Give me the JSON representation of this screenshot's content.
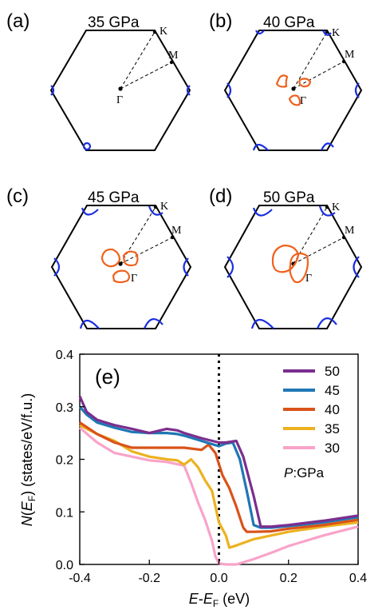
{
  "panels": [
    {
      "letter": "(a)",
      "pressure": "35 GPa",
      "k": "K",
      "m": "M",
      "gamma": "Γ"
    },
    {
      "letter": "(b)",
      "pressure": "40 GPa",
      "k": "K",
      "m": "M",
      "gamma": "Γ"
    },
    {
      "letter": "(c)",
      "pressure": "45 GPa",
      "k": "K",
      "m": "M",
      "gamma": "Γ"
    },
    {
      "letter": "(d)",
      "pressure": "50 GPa",
      "k": "K",
      "m": "M",
      "gamma": "Γ"
    }
  ],
  "colors": {
    "fermi_blue": "#1a2fe0",
    "fermi_orange": "#f0621e"
  },
  "chart_data": {
    "type": "line",
    "panel_label": "(e)",
    "xlabel": "E-E_F (eV)",
    "ylabel": "N(E_F) (states/eV/f.u.)",
    "xlim": [
      -0.4,
      0.4
    ],
    "ylim": [
      0.0,
      0.4
    ],
    "xticks": [
      "-0.4",
      "-0.2",
      "0.0",
      "0.2",
      "0.4"
    ],
    "yticks": [
      "0.0",
      "0.1",
      "0.2",
      "0.3",
      "0.4"
    ],
    "fermi_line_x": 0.0,
    "legend_title": "P:GPa",
    "legend_position": "top-right",
    "series": [
      {
        "name": "50",
        "color": "#7b2e8e",
        "x": [
          -0.4,
          -0.38,
          -0.35,
          -0.3,
          -0.25,
          -0.2,
          -0.15,
          -0.12,
          -0.1,
          -0.05,
          0.0,
          0.02,
          0.05,
          0.07,
          0.1,
          0.12,
          0.15,
          0.2,
          0.3,
          0.4
        ],
        "y": [
          0.32,
          0.29,
          0.275,
          0.265,
          0.258,
          0.25,
          0.258,
          0.255,
          0.25,
          0.24,
          0.232,
          0.232,
          0.235,
          0.205,
          0.13,
          0.072,
          0.072,
          0.075,
          0.083,
          0.093
        ]
      },
      {
        "name": "45",
        "color": "#1f77b4",
        "x": [
          -0.4,
          -0.38,
          -0.35,
          -0.3,
          -0.25,
          -0.2,
          -0.15,
          -0.12,
          -0.1,
          -0.05,
          0.0,
          0.02,
          0.04,
          0.06,
          0.08,
          0.1,
          0.12,
          0.15,
          0.2,
          0.3,
          0.4
        ],
        "y": [
          0.3,
          0.285,
          0.27,
          0.26,
          0.252,
          0.25,
          0.25,
          0.248,
          0.245,
          0.235,
          0.225,
          0.23,
          0.232,
          0.2,
          0.14,
          0.075,
          0.07,
          0.07,
          0.073,
          0.08,
          0.09
        ]
      },
      {
        "name": "40",
        "color": "#d95319",
        "x": [
          -0.4,
          -0.35,
          -0.3,
          -0.25,
          -0.2,
          -0.15,
          -0.1,
          -0.05,
          -0.03,
          -0.01,
          0.01,
          0.03,
          0.05,
          0.07,
          0.08,
          0.1,
          0.15,
          0.2,
          0.3,
          0.4
        ],
        "y": [
          0.27,
          0.248,
          0.232,
          0.222,
          0.222,
          0.222,
          0.222,
          0.218,
          0.228,
          0.212,
          0.17,
          0.145,
          0.11,
          0.07,
          0.062,
          0.062,
          0.063,
          0.068,
          0.075,
          0.085
        ]
      },
      {
        "name": "35",
        "color": "#edb120",
        "x": [
          -0.4,
          -0.35,
          -0.3,
          -0.25,
          -0.2,
          -0.15,
          -0.12,
          -0.1,
          -0.08,
          -0.06,
          -0.04,
          -0.02,
          0.0,
          0.02,
          0.03,
          0.05,
          0.1,
          0.15,
          0.2,
          0.3,
          0.4
        ],
        "y": [
          0.265,
          0.248,
          0.235,
          0.215,
          0.205,
          0.2,
          0.198,
          0.19,
          0.2,
          0.185,
          0.16,
          0.14,
          0.08,
          0.055,
          0.032,
          0.036,
          0.048,
          0.055,
          0.062,
          0.072,
          0.08
        ]
      },
      {
        "name": "30",
        "color": "#f9a3c9",
        "x": [
          -0.4,
          -0.35,
          -0.3,
          -0.25,
          -0.2,
          -0.15,
          -0.1,
          -0.08,
          -0.06,
          -0.04,
          -0.02,
          -0.01,
          0.0,
          0.02,
          0.05,
          0.1,
          0.15,
          0.2,
          0.3,
          0.4
        ],
        "y": [
          0.26,
          0.232,
          0.212,
          0.205,
          0.198,
          0.195,
          0.188,
          0.155,
          0.118,
          0.085,
          0.045,
          0.015,
          0.002,
          0.0,
          0.0,
          0.01,
          0.022,
          0.035,
          0.055,
          0.072
        ]
      }
    ]
  }
}
